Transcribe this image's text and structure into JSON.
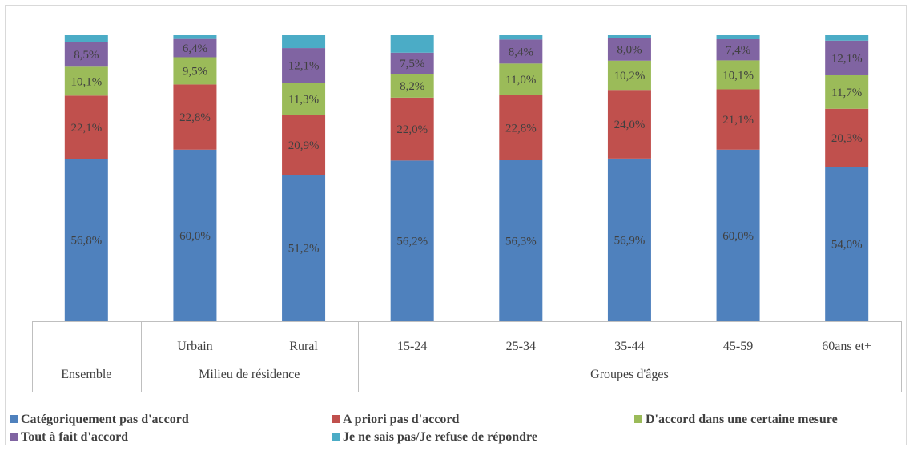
{
  "chart_data": {
    "type": "bar",
    "stacked": true,
    "percent_scale": true,
    "categories": [
      "",
      "Urbain",
      "Rural",
      "15-24",
      "25-34",
      "35-44",
      "45-59",
      "60ans et+"
    ],
    "groups": [
      {
        "label": "Ensemble",
        "span": [
          0,
          0
        ]
      },
      {
        "label": "Milieu de résidence",
        "span": [
          1,
          2
        ]
      },
      {
        "label": "Groupes d'âges",
        "span": [
          3,
          7
        ]
      }
    ],
    "series": [
      {
        "name": "Catégoriquement pas d'accord",
        "color": "#4f81bd",
        "values": [
          56.8,
          60.0,
          51.2,
          56.2,
          56.3,
          56.9,
          60.0,
          54.0
        ],
        "labels": [
          "56,8%",
          "60,0%",
          "51,2%",
          "56,2%",
          "56,3%",
          "56,9%",
          "60,0%",
          "54,0%"
        ]
      },
      {
        "name": "A priori pas d'accord",
        "color": "#c0504d",
        "values": [
          22.1,
          22.8,
          20.9,
          22.0,
          22.8,
          24.0,
          21.1,
          20.3
        ],
        "labels": [
          "22,1%",
          "22,8%",
          "20,9%",
          "22,0%",
          "22,8%",
          "24,0%",
          "21,1%",
          "20,3%"
        ]
      },
      {
        "name": "D'accord dans une certaine mesure",
        "color": "#9bbb59",
        "values": [
          10.1,
          9.5,
          11.3,
          8.2,
          11.0,
          10.2,
          10.1,
          11.7
        ],
        "labels": [
          "10,1%",
          "9,5%",
          "11,3%",
          "8,2%",
          "11,0%",
          "10,2%",
          "10,1%",
          "11,7%"
        ]
      },
      {
        "name": "Tout à fait d'accord",
        "color": "#8064a2",
        "values": [
          8.5,
          6.4,
          12.1,
          7.5,
          8.4,
          8.0,
          7.4,
          12.1
        ],
        "labels": [
          "8,5%",
          "6,4%",
          "12,1%",
          "7,5%",
          "8,4%",
          "8,0%",
          "7,4%",
          "12,1%"
        ]
      },
      {
        "name": "Je ne sais pas/Je refuse de répondre",
        "color": "#4bacc6",
        "values": [
          2.5,
          1.3,
          4.5,
          6.1,
          1.5,
          0.9,
          1.4,
          1.9
        ],
        "labels": [
          "",
          "",
          "",
          "",
          "",
          "",
          "",
          ""
        ]
      }
    ],
    "ylim": [
      0,
      100
    ],
    "legend_position": "bottom"
  }
}
